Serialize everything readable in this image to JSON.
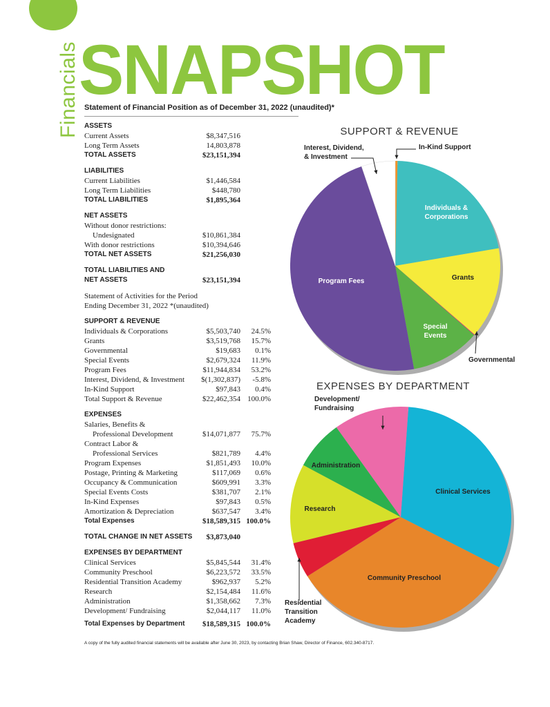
{
  "header": {
    "side_label": "Financials",
    "title": "SNAPSHOT",
    "subtitle": "Statement of Financial Position as of December 31, 2022 (unaudited)*"
  },
  "assets": {
    "heading": "ASSETS",
    "rows": [
      {
        "label": "Current Assets",
        "amount": "$8,347,516"
      },
      {
        "label": "Long Term Assets",
        "amount": "14,803,878"
      }
    ],
    "total": {
      "label": "TOTAL ASSETS",
      "amount": "$23,151,394"
    }
  },
  "liabilities": {
    "heading": "LIABILITIES",
    "rows": [
      {
        "label": "Current Liabilities",
        "amount": "$1,446,584"
      },
      {
        "label": "Long Term Liabilities",
        "amount": "$448,780"
      }
    ],
    "total": {
      "label": "TOTAL LIABILITIES",
      "amount": "$1,895,364"
    }
  },
  "net_assets": {
    "heading": "NET ASSETS",
    "without_label": "Without donor restrictions:",
    "undesignated_label": "Undesignated",
    "undesignated_amount": "$10,861,384",
    "with_label": "With donor restrictions",
    "with_amount": "$10,394,646",
    "total": {
      "label": "TOTAL NET ASSETS",
      "amount": "$21,256,030"
    }
  },
  "total_liab_net": {
    "line1": "TOTAL LIABILITIES AND",
    "line2": "NET ASSETS",
    "amount": "$23,151,394"
  },
  "activities_note": {
    "line1": "Statement of Activities for the Period",
    "line2": "Ending December 31, 2022 *(unaudited)"
  },
  "support_revenue": {
    "heading": "SUPPORT & REVENUE",
    "rows": [
      {
        "label": "Individuals & Corporations",
        "amount": "$5,503,740",
        "pct": "24.5%"
      },
      {
        "label": "Grants",
        "amount": "$3,519,768",
        "pct": "15.7%"
      },
      {
        "label": "Governmental",
        "amount": "$19,683",
        "pct": "0.1%"
      },
      {
        "label": "Special Events",
        "amount": "$2,679,324",
        "pct": "11.9%"
      },
      {
        "label": "Program Fees",
        "amount": "$11,944,834",
        "pct": "53.2%"
      },
      {
        "label": "Interest, Dividend, & Investment",
        "amount": "$(1,302,837)",
        "pct": "-5.8%"
      },
      {
        "label": "In-Kind Support",
        "amount": "$97,843",
        "pct": "0.4%"
      },
      {
        "label": "Total Support & Revenue",
        "amount": "$22,462,354",
        "pct": "100.0%"
      }
    ]
  },
  "expenses": {
    "heading": "EXPENSES",
    "salaries_line1": "Salaries, Benefits &",
    "salaries_line2": "Professional Development",
    "salaries_amount": "$14,071,877",
    "salaries_pct": "75.7%",
    "contract_line1": "Contract Labor &",
    "contract_line2": "Professional Services",
    "contract_amount": "$821,789",
    "contract_pct": "4.4%",
    "rows": [
      {
        "label": "Program Expenses",
        "amount": "$1,851,493",
        "pct": "10.0%"
      },
      {
        "label": "Postage, Printing & Marketing",
        "amount": "$117,069",
        "pct": "0.6%"
      },
      {
        "label": "Occupancy & Communication",
        "amount": "$609,991",
        "pct": "3.3%"
      },
      {
        "label": "Special Events Costs",
        "amount": "$381,707",
        "pct": "2.1%"
      },
      {
        "label": "In-Kind Expenses",
        "amount": "$97,843",
        "pct": "0.5%"
      },
      {
        "label": "Amortization & Depreciation",
        "amount": "$637,547",
        "pct": "3.4%"
      }
    ],
    "total": {
      "label": "Total Expenses",
      "amount": "$18,589,315",
      "pct": "100.0%"
    }
  },
  "change_net": {
    "label": "TOTAL CHANGE IN NET ASSETS",
    "amount": "$3,873,040"
  },
  "expenses_dept": {
    "heading": "EXPENSES BY DEPARTMENT",
    "rows": [
      {
        "label": "Clinical Services",
        "amount": "$5,845,544",
        "pct": "31.4%"
      },
      {
        "label": "Community Preschool",
        "amount": "$6,223,572",
        "pct": "33.5%"
      },
      {
        "label": "Residential Transition Academy",
        "amount": "$962,937",
        "pct": "5.2%"
      },
      {
        "label": "Research",
        "amount": "$2,154,484",
        "pct": "11.6%"
      },
      {
        "label": "Administration",
        "amount": "$1,358,662",
        "pct": "7.3%"
      },
      {
        "label": "Development/ Fundraising",
        "amount": "$2,044,117",
        "pct": "11.0%"
      }
    ],
    "total": {
      "label": "Total Expenses by Department",
      "amount": "$18,589,315",
      "pct": "100.0%"
    }
  },
  "footnote": "A copy of the fully audited financial statements will be available after June 30, 2023, by contacting Brian Shaw, Director of Finance, 602.340-8717.",
  "chart_data": [
    {
      "type": "pie",
      "title": "SUPPORT & REVENUE",
      "slices": [
        {
          "name": "In-Kind Support",
          "value": 0.4,
          "color": "#f0932b",
          "label_lines": [
            "In-Kind Support"
          ]
        },
        {
          "name": "Individuals & Corporations",
          "value": 24.5,
          "color": "#3fbfbf",
          "label_lines": [
            "Individuals &",
            "Corporations"
          ]
        },
        {
          "name": "Grants",
          "value": 15.7,
          "color": "#f5eb3b",
          "label_lines": [
            "Grants"
          ]
        },
        {
          "name": "Governmental",
          "value": 0.1,
          "color": "#e8196e",
          "label_lines": [
            "Governmental"
          ]
        },
        {
          "name": "Special Events",
          "value": 11.9,
          "color": "#5cb247",
          "label_lines": [
            "Special",
            "Events"
          ]
        },
        {
          "name": "Program Fees",
          "value": 53.2,
          "color": "#6a4c9c",
          "label_lines": [
            "Program Fees"
          ]
        },
        {
          "name": "Interest, Dividend, & Investment",
          "value": 5.8,
          "color": "#ffffff",
          "label_lines": [
            "Interest, Dividend,",
            "& Investment"
          ]
        }
      ]
    },
    {
      "type": "pie",
      "title": "EXPENSES BY DEPARTMENT",
      "slices": [
        {
          "name": "Clinical Services",
          "value": 31.4,
          "color": "#14b4d6",
          "label_lines": [
            "Clinical Services"
          ]
        },
        {
          "name": "Community Preschool",
          "value": 33.5,
          "color": "#e8862a",
          "label_lines": [
            "Community Preschool"
          ]
        },
        {
          "name": "Residential Transition Academy",
          "value": 5.2,
          "color": "#e01e35",
          "label_lines": [
            "Residential",
            "Transition",
            "Academy"
          ]
        },
        {
          "name": "Research",
          "value": 11.6,
          "color": "#d6e02a",
          "label_lines": [
            "Research"
          ]
        },
        {
          "name": "Administration",
          "value": 7.3,
          "color": "#2cb04e",
          "label_lines": [
            "Administration"
          ]
        },
        {
          "name": "Development/ Fundraising",
          "value": 11.0,
          "color": "#ec6aa9",
          "label_lines": [
            "Development/",
            "Fundraising"
          ]
        }
      ]
    }
  ]
}
